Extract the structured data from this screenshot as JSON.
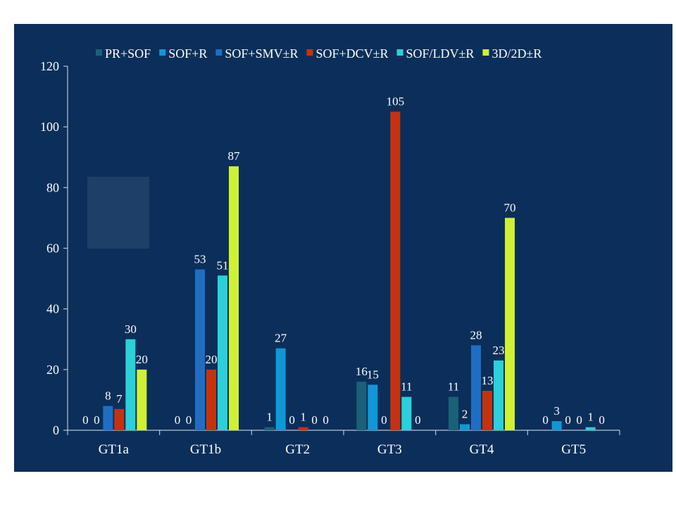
{
  "colors": {
    "panel_background": "#0b2f5a",
    "axis": "#b8c4d2",
    "decor_box": "#1e3f68",
    "text": "#ffffff"
  },
  "chart_data": {
    "type": "bar",
    "categories": [
      "GT1a",
      "GT1b",
      "GT2",
      "GT3",
      "GT4",
      "GT5"
    ],
    "ylim": [
      0,
      120
    ],
    "yticks": [
      0,
      20,
      40,
      60,
      80,
      100,
      120
    ],
    "legend_position": "top",
    "grid": false,
    "series": [
      {
        "name": "PR+SOF",
        "color": "#1a6178",
        "values": [
          0,
          0,
          1,
          16,
          11,
          0
        ]
      },
      {
        "name": "SOF+R",
        "color": "#0f98d6",
        "values": [
          0,
          0,
          27,
          15,
          2,
          3
        ]
      },
      {
        "name": "SOF+SMV±R",
        "color": "#1f6ec2",
        "values": [
          8,
          53,
          0,
          0,
          28,
          0
        ]
      },
      {
        "name": "SOF+DCV±R",
        "color": "#c4330f",
        "values": [
          7,
          20,
          1,
          105,
          13,
          0
        ]
      },
      {
        "name": "SOF/LDV±R",
        "color": "#2cd0d8",
        "values": [
          30,
          51,
          0,
          11,
          23,
          1
        ]
      },
      {
        "name": "3D/2D±R",
        "color": "#d0f034",
        "values": [
          20,
          87,
          0,
          0,
          70,
          0
        ]
      }
    ]
  }
}
